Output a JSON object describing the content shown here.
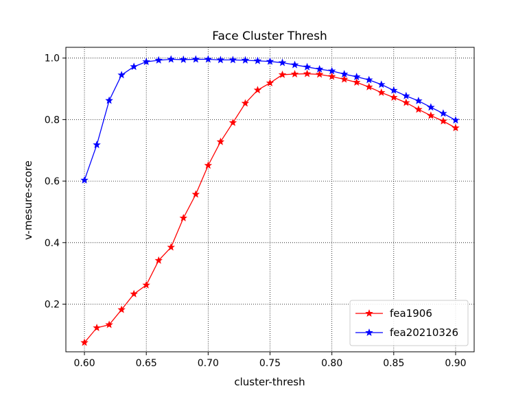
{
  "chart_data": {
    "type": "line",
    "title": "Face Cluster Thresh",
    "xlabel": "cluster-thresh",
    "ylabel": "v-mesure-score",
    "xlim": [
      0.585,
      0.915
    ],
    "ylim": [
      0.045,
      1.035
    ],
    "xticks": [
      0.6,
      0.65,
      0.7,
      0.75,
      0.8,
      0.85,
      0.9
    ],
    "xtick_labels": [
      "0.60",
      "0.65",
      "0.70",
      "0.75",
      "0.80",
      "0.85",
      "0.90"
    ],
    "yticks": [
      0.2,
      0.4,
      0.6,
      0.8,
      1.0
    ],
    "ytick_labels": [
      "0.2",
      "0.4",
      "0.6",
      "0.8",
      "1.0"
    ],
    "grid": true,
    "grid_style": "dotted",
    "legend_position": "lower-right",
    "x": [
      0.6,
      0.61,
      0.62,
      0.63,
      0.64,
      0.65,
      0.66,
      0.67,
      0.68,
      0.69,
      0.7,
      0.71,
      0.72,
      0.73,
      0.74,
      0.75,
      0.76,
      0.77,
      0.78,
      0.79,
      0.8,
      0.81,
      0.82,
      0.83,
      0.84,
      0.85,
      0.86,
      0.87,
      0.88,
      0.89,
      0.9
    ],
    "series": [
      {
        "name": "fea1906",
        "color": "#ff0000",
        "marker": "star",
        "values": [
          0.075,
          0.123,
          0.133,
          0.182,
          0.233,
          0.262,
          0.342,
          0.385,
          0.48,
          0.557,
          0.651,
          0.728,
          0.79,
          0.853,
          0.896,
          0.919,
          0.946,
          0.948,
          0.949,
          0.947,
          0.94,
          0.931,
          0.921,
          0.906,
          0.888,
          0.872,
          0.855,
          0.833,
          0.813,
          0.795,
          0.773
        ]
      },
      {
        "name": "fea20210326",
        "color": "#0000ff",
        "marker": "star",
        "values": [
          0.603,
          0.718,
          0.862,
          0.945,
          0.972,
          0.988,
          0.993,
          0.996,
          0.995,
          0.996,
          0.996,
          0.994,
          0.994,
          0.993,
          0.991,
          0.989,
          0.985,
          0.978,
          0.971,
          0.964,
          0.958,
          0.948,
          0.939,
          0.929,
          0.914,
          0.895,
          0.877,
          0.861,
          0.84,
          0.82,
          0.798
        ]
      }
    ]
  }
}
